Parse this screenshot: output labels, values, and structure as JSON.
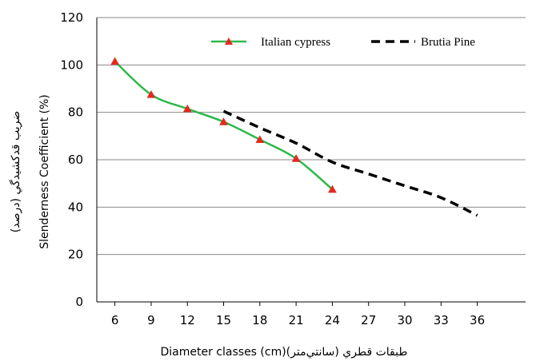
{
  "chart_data": {
    "type": "line",
    "x_ticks": [
      "6",
      "9",
      "12",
      "15",
      "18",
      "21",
      "24",
      "27",
      "30",
      "33",
      "36"
    ],
    "y_ticks": [
      "0",
      "20",
      "40",
      "60",
      "80",
      "100",
      "120"
    ],
    "xlim": [
      4.5,
      40
    ],
    "ylim": [
      0,
      120
    ],
    "grid": "horizontal",
    "legend_position": "top",
    "xlabel": "Diameter classes (cm)(طبقات قطري (سانتي‌متر",
    "ylabel": "Slenderness Coefficient (%)",
    "ylabel_secondary": "ضريب قدکشيدگي (درصد)",
    "series": [
      {
        "name": "Italian cypress",
        "color": "#2db84a",
        "marker_color": "#e8281e",
        "style": "solid-marker",
        "x": [
          6,
          9,
          12,
          15,
          18,
          21,
          24
        ],
        "y": [
          101.5,
          87.5,
          81.5,
          76,
          68.5,
          60.5,
          47.5
        ]
      },
      {
        "name": "Brutia Pine",
        "color": "#000000",
        "style": "dashed",
        "x": [
          15,
          18,
          21,
          24,
          27,
          30,
          33,
          36
        ],
        "y": [
          80.5,
          73.5,
          67,
          59,
          54,
          49,
          44,
          36.5
        ]
      }
    ]
  }
}
